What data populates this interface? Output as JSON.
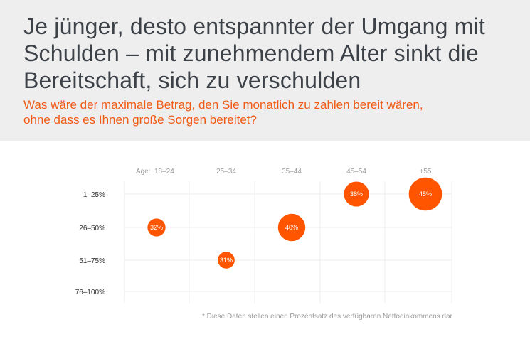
{
  "header": {
    "title": "Je jünger, desto entspannter der Umgang mit Schulden – mit zunehmendem Alter sinkt die Bereitschaft, sich zu verschulden",
    "subtitle": "Was wäre der maximale Betrag, den Sie monatlich zu zahlen bereit wären, ohne dass es Ihnen große Sorgen bereitet?"
  },
  "chart_data": {
    "type": "scatter",
    "title": "",
    "xlabel": "Age:",
    "ylabel": "",
    "categories": [
      "18–24",
      "25–34",
      "35–44",
      "45–54",
      "+55"
    ],
    "y_categories": [
      "1–25%",
      "26–50%",
      "51–75%",
      "76–100%"
    ],
    "points": [
      {
        "x": "18–24",
        "y": "26–50%",
        "value": 32,
        "label": "32%"
      },
      {
        "x": "25–34",
        "y": "51–75%",
        "value": 31,
        "label": "31%"
      },
      {
        "x": "35–44",
        "y": "26–50%",
        "value": 40,
        "label": "40%"
      },
      {
        "x": "45–54",
        "y": "1–25%",
        "value": 38,
        "label": "38%"
      },
      {
        "x": "+55",
        "y": "1–25%",
        "value": 45,
        "label": "45%"
      }
    ],
    "grid": true,
    "bubble_color": "#ff5500"
  },
  "footnote": "* Diese Daten stellen einen Prozentsatz des verfügbaren Nettoeinkommens dar"
}
